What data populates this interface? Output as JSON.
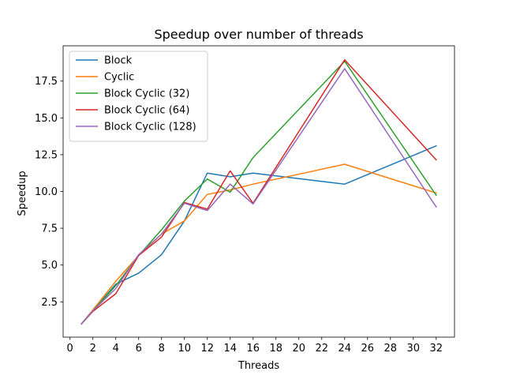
{
  "chart_data": {
    "type": "line",
    "title": "Speedup over number of threads",
    "xlabel": "Threads",
    "ylabel": "Speedup",
    "xlim": [
      -0.6,
      33.6
    ],
    "ylim": [
      0.1,
      19.9
    ],
    "xticks": [
      0,
      2,
      4,
      6,
      8,
      10,
      12,
      14,
      16,
      18,
      20,
      22,
      24,
      26,
      28,
      30,
      32
    ],
    "yticks": [
      2.5,
      5.0,
      7.5,
      10.0,
      12.5,
      15.0,
      17.5
    ],
    "ytick_labels": [
      "2.5",
      "5.0",
      "7.5",
      "10.0",
      "12.5",
      "15.0",
      "17.5"
    ],
    "grid": false,
    "legend": "upper-left",
    "x": [
      1,
      2,
      4,
      6,
      8,
      10,
      12,
      14,
      16,
      24,
      32
    ],
    "series": [
      {
        "name": "Block",
        "color": "#1f77b4",
        "values": [
          1.0,
          1.9,
          3.7,
          4.45,
          5.7,
          8.0,
          11.25,
          11.0,
          11.25,
          10.5,
          13.1
        ]
      },
      {
        "name": "Cyclic",
        "color": "#ff7f0e",
        "values": [
          1.0,
          1.95,
          3.9,
          5.65,
          7.1,
          8.0,
          9.8,
          10.1,
          10.5,
          11.85,
          9.9
        ]
      },
      {
        "name": "Block Cyclic (32)",
        "color": "#2ca02c",
        "values": [
          1.0,
          1.9,
          3.6,
          5.65,
          7.4,
          9.35,
          10.85,
          9.95,
          12.3,
          18.85,
          9.75
        ]
      },
      {
        "name": "Block Cyclic (64)",
        "color": "#d62728",
        "values": [
          1.0,
          1.85,
          3.05,
          5.65,
          6.9,
          9.25,
          8.8,
          11.4,
          9.2,
          18.95,
          12.15
        ]
      },
      {
        "name": "Block Cyclic (128)",
        "color": "#9467bd",
        "values": [
          1.0,
          1.9,
          3.4,
          5.7,
          7.1,
          9.2,
          8.7,
          10.5,
          9.15,
          18.35,
          8.95
        ]
      }
    ]
  }
}
